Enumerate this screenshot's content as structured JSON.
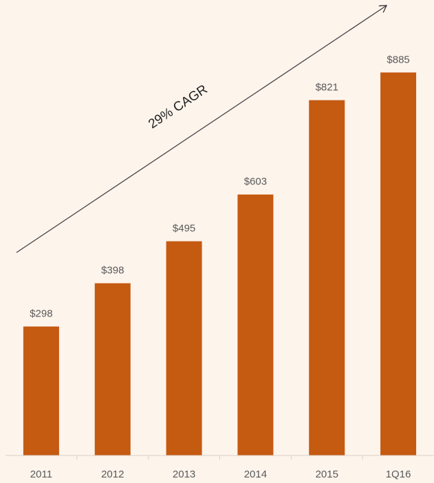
{
  "chart_data": {
    "type": "bar",
    "categories": [
      "2011",
      "2012",
      "2013",
      "2014",
      "2015",
      "1Q16"
    ],
    "values": [
      298,
      398,
      495,
      603,
      821,
      885
    ],
    "data_labels": [
      "$298",
      "$398",
      "$495",
      "$603",
      "$821",
      "$885"
    ],
    "title": "",
    "xlabel": "",
    "ylabel": "",
    "ylim": [
      0,
      1000
    ],
    "grid": false,
    "legend": "none",
    "bar_color": "#c55a11",
    "annotation": {
      "text": "29% CAGR",
      "kind": "upward trend arrow"
    }
  }
}
